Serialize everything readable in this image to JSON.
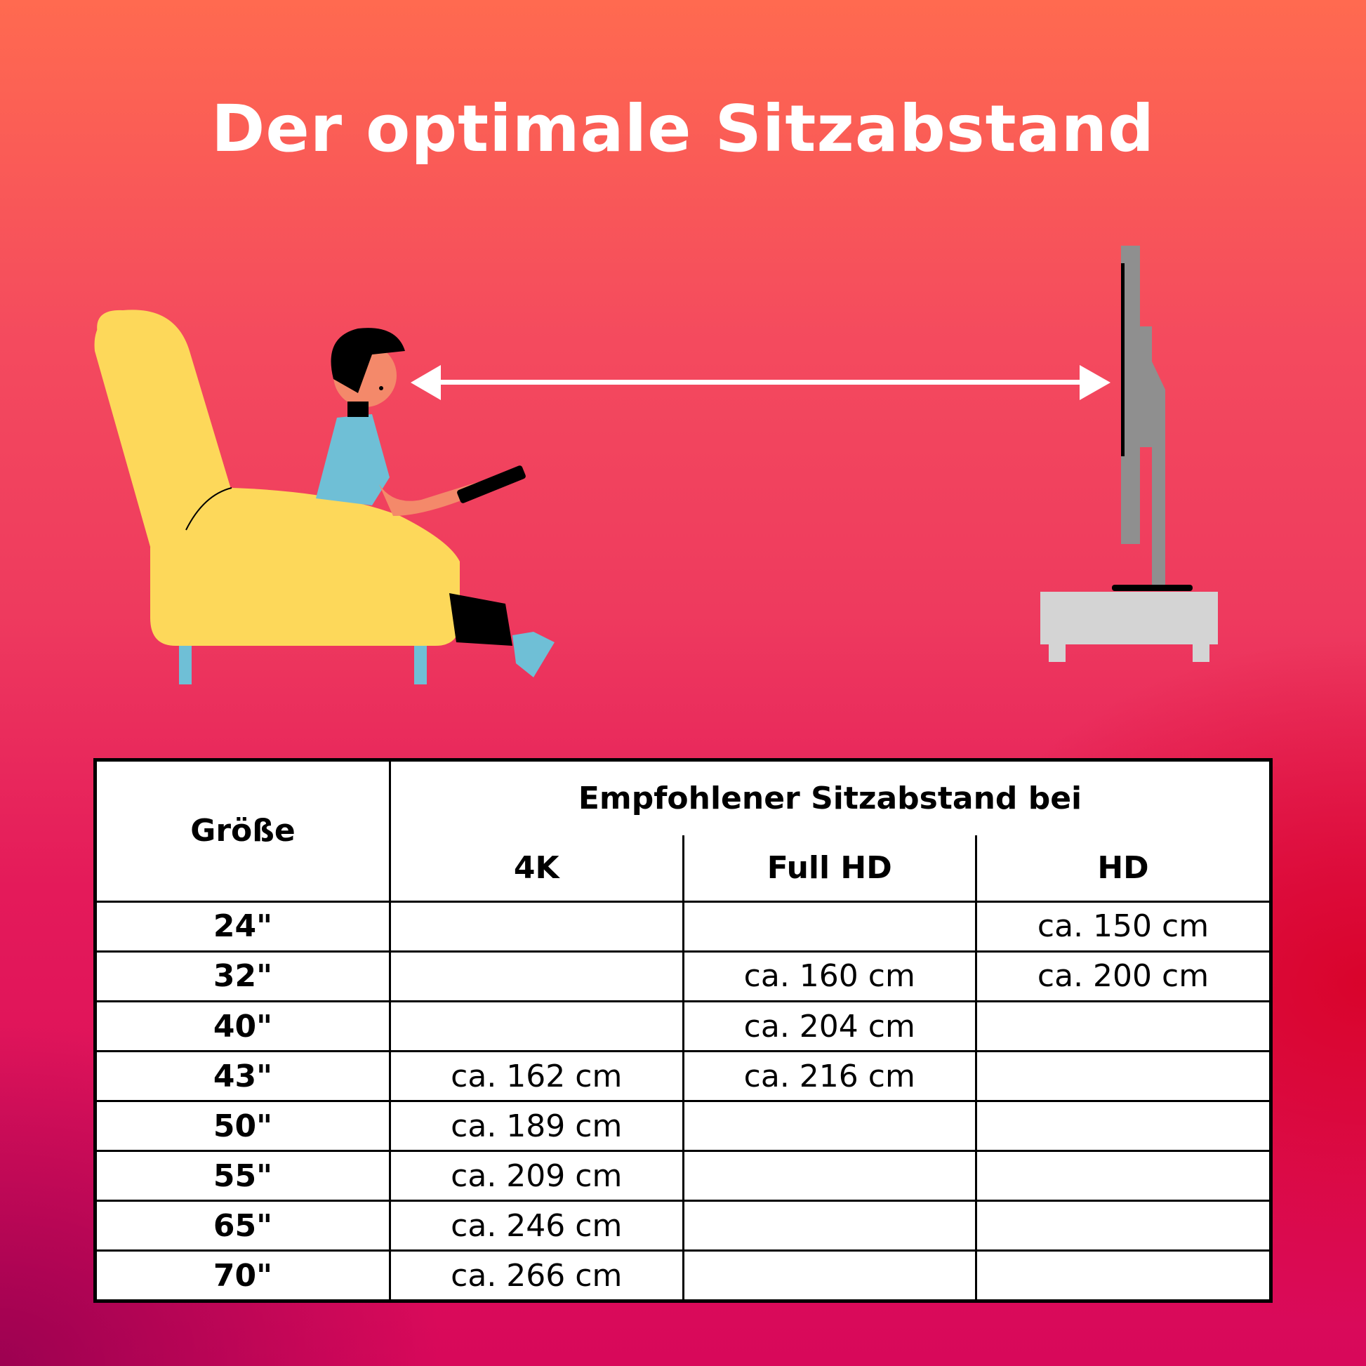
{
  "title": "Der optimale Sitzabstand",
  "colors": {
    "background_top": "#ff6a50",
    "background_bottom": "#d8085a",
    "armchair": "#fdd85a",
    "tv": "#8f8f8f",
    "tv_stand": "#d4d4d4",
    "arrow": "#ffffff"
  },
  "illustration": {
    "icons": [
      "armchair-illustration",
      "person-with-remote-illustration",
      "distance-arrow-icon",
      "tv-illustration"
    ]
  },
  "table": {
    "size_header": "Größe",
    "group_header": "Empfohlener Sitzabstand bei",
    "columns": [
      "4K",
      "Full HD",
      "HD"
    ],
    "rows": [
      {
        "size": "24\"",
        "4k": "",
        "fullhd": "",
        "hd": "ca. 150 cm"
      },
      {
        "size": "32\"",
        "4k": "",
        "fullhd": "ca. 160 cm",
        "hd": "ca. 200 cm"
      },
      {
        "size": "40\"",
        "4k": "",
        "fullhd": "ca. 204 cm",
        "hd": ""
      },
      {
        "size": "43\"",
        "4k": "ca. 162 cm",
        "fullhd": "ca. 216 cm",
        "hd": ""
      },
      {
        "size": "50\"",
        "4k": "ca. 189 cm",
        "fullhd": "",
        "hd": ""
      },
      {
        "size": "55\"",
        "4k": "ca. 209 cm",
        "fullhd": "",
        "hd": ""
      },
      {
        "size": "65\"",
        "4k": "ca. 246 cm",
        "fullhd": "",
        "hd": ""
      },
      {
        "size": "70\"",
        "4k": "ca. 266 cm",
        "fullhd": "",
        "hd": ""
      }
    ]
  }
}
